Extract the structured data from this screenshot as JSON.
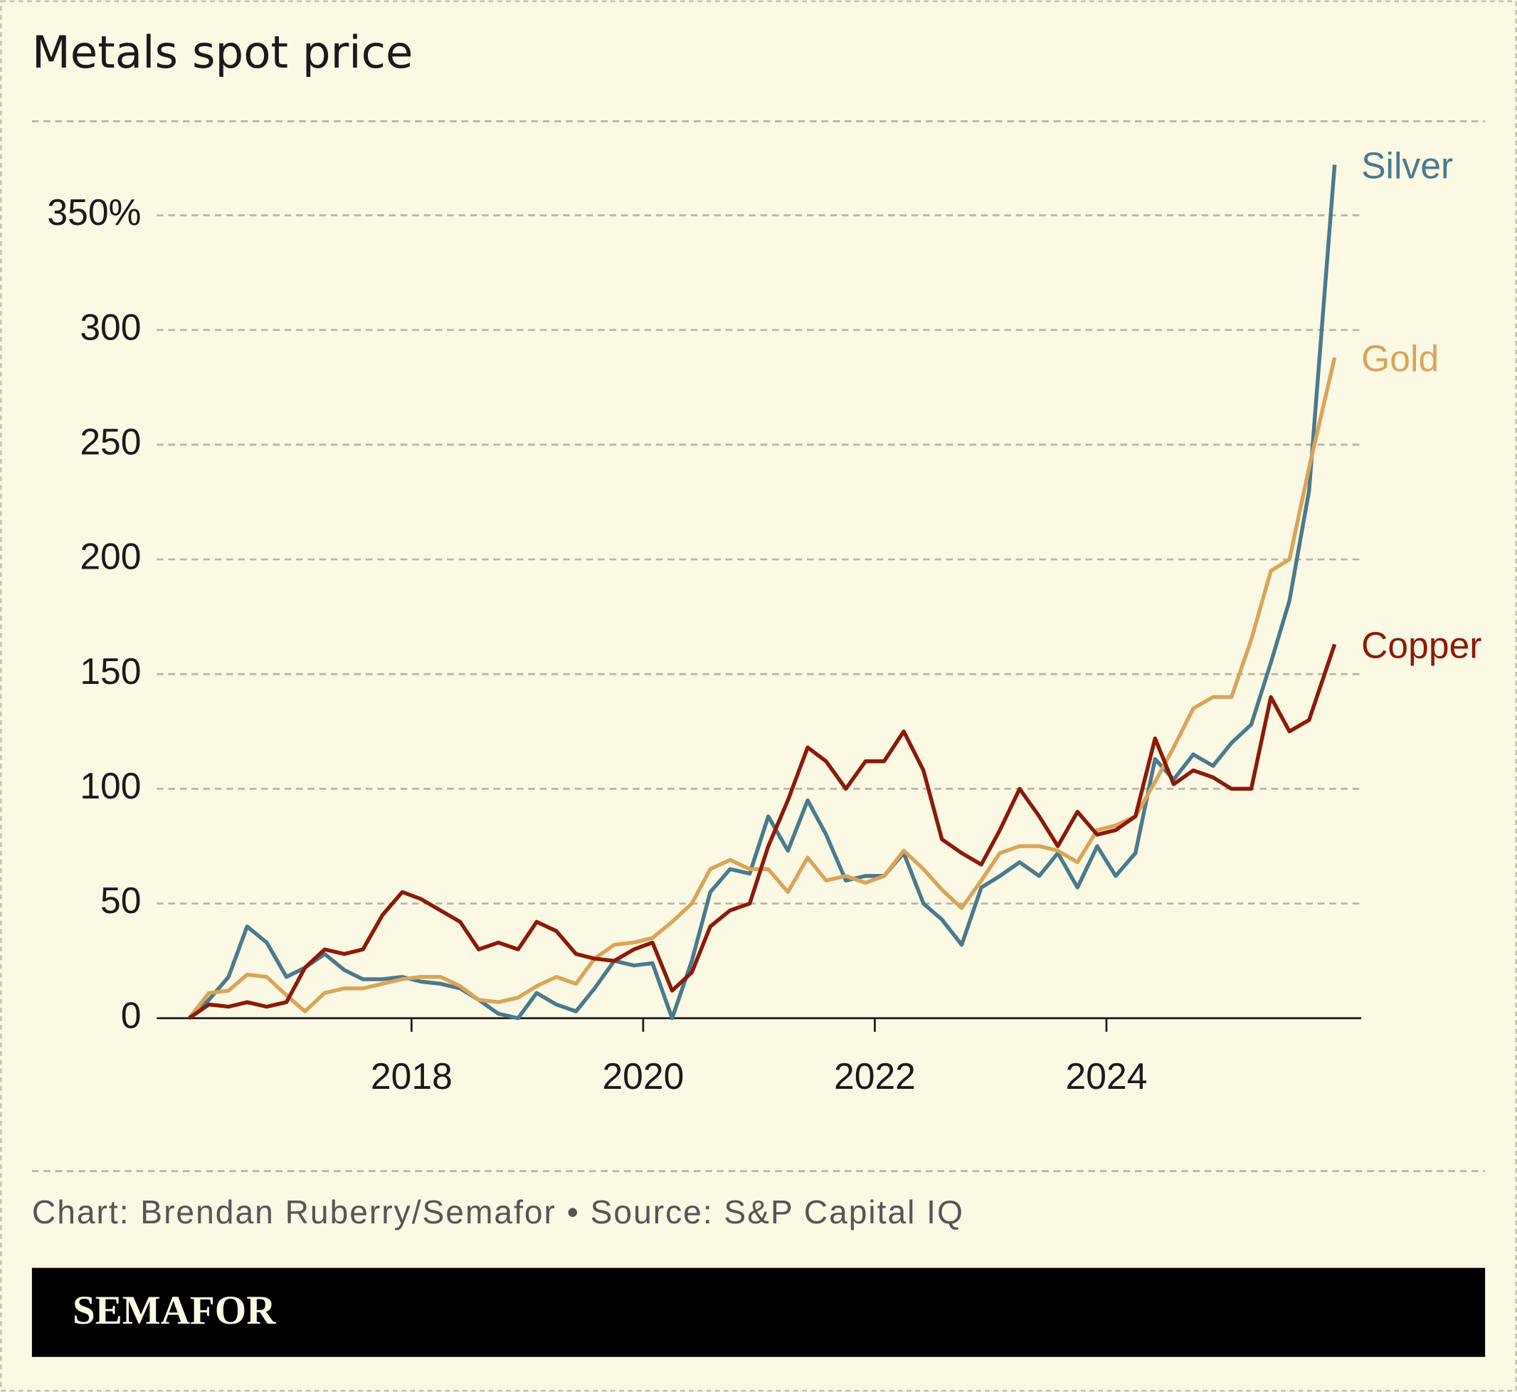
{
  "chart_data": {
    "type": "line",
    "title": "Metals spot price",
    "source": "Chart: Brendan Ruberry/Semafor • Source: S&P Capital IQ",
    "brand": "SEMAFOR",
    "x": [
      2016.08,
      2016.25,
      2016.42,
      2016.58,
      2016.75,
      2016.92,
      2017.08,
      2017.25,
      2017.42,
      2017.58,
      2017.75,
      2017.92,
      2018.08,
      2018.25,
      2018.42,
      2018.58,
      2018.75,
      2018.92,
      2019.08,
      2019.25,
      2019.42,
      2019.58,
      2019.75,
      2019.92,
      2020.08,
      2020.25,
      2020.42,
      2020.58,
      2020.75,
      2020.92,
      2021.08,
      2021.25,
      2021.42,
      2021.58,
      2021.75,
      2021.92,
      2022.08,
      2022.25,
      2022.42,
      2022.58,
      2022.75,
      2022.92,
      2023.08,
      2023.25,
      2023.42,
      2023.58,
      2023.75,
      2023.92,
      2024.08,
      2024.25,
      2024.42,
      2024.58,
      2024.75,
      2024.92,
      2025.08,
      2025.25,
      2025.42,
      2025.58,
      2025.75,
      2025.97
    ],
    "series": [
      {
        "name": "Silver",
        "color": "#4a7a8c",
        "values": [
          0,
          8,
          18,
          40,
          33,
          18,
          22,
          28,
          21,
          17,
          17,
          18,
          16,
          15,
          13,
          8,
          2,
          0,
          11,
          6,
          3,
          13,
          25,
          23,
          24,
          0,
          25,
          55,
          65,
          63,
          88,
          73,
          95,
          80,
          60,
          62,
          62,
          72,
          50,
          43,
          32,
          57,
          62,
          68,
          62,
          72,
          57,
          75,
          62,
          72,
          113,
          104,
          115,
          110,
          120,
          128,
          155,
          182,
          230,
          372
        ]
      },
      {
        "name": "Gold",
        "color": "#d9a55a",
        "values": [
          0,
          11,
          12,
          19,
          18,
          10,
          3,
          11,
          13,
          13,
          15,
          17,
          18,
          18,
          14,
          8,
          7,
          9,
          14,
          18,
          15,
          26,
          32,
          33,
          35,
          42,
          50,
          65,
          69,
          65,
          65,
          55,
          70,
          60,
          62,
          59,
          62,
          73,
          65,
          56,
          48,
          60,
          72,
          75,
          75,
          73,
          68,
          82,
          84,
          88,
          103,
          118,
          135,
          140,
          140,
          165,
          195,
          200,
          240,
          288
        ]
      },
      {
        "name": "Copper",
        "color": "#8b1a0a",
        "values": [
          0,
          6,
          5,
          7,
          5,
          7,
          22,
          30,
          28,
          30,
          45,
          55,
          52,
          47,
          42,
          30,
          33,
          30,
          42,
          38,
          28,
          26,
          25,
          30,
          33,
          12,
          20,
          40,
          47,
          50,
          75,
          95,
          118,
          112,
          100,
          112,
          112,
          125,
          108,
          78,
          72,
          67,
          82,
          100,
          88,
          75,
          90,
          80,
          82,
          88,
          122,
          102,
          108,
          105,
          100,
          100,
          140,
          125,
          130,
          163
        ]
      }
    ],
    "xlim": [
      2015.8,
      2026.2
    ],
    "xticks": [
      2018,
      2020,
      2022,
      2024
    ],
    "ylim": [
      0,
      391
    ],
    "yticks": [
      0,
      50,
      100,
      150,
      200,
      250,
      300,
      {
        "value": 350,
        "label": "350%"
      }
    ],
    "grid": true
  }
}
